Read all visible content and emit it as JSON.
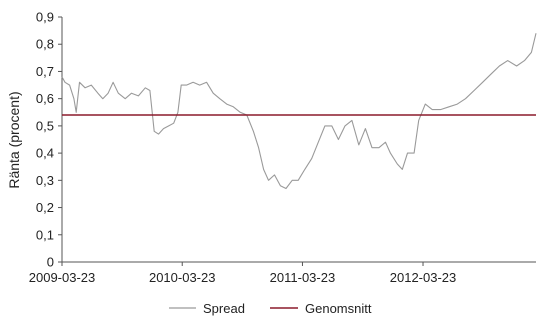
{
  "chart_data": {
    "type": "line",
    "ylabel": "Ränta (procent)",
    "xlabel": "",
    "ylim": [
      0,
      0.9
    ],
    "y_ticks": [
      "0",
      "0,1",
      "0,2",
      "0,3",
      "0,4",
      "0,5",
      "0,6",
      "0,7",
      "0,8",
      "0,9"
    ],
    "x_ticks": [
      "2009-03-23",
      "2010-03-23",
      "2011-03-23",
      "2012-03-23"
    ],
    "xlim": [
      "2009-03-23",
      "2013-03-01"
    ],
    "grid": false,
    "legend_position": "bottom",
    "series": [
      {
        "name": "Spread",
        "style": "line",
        "color": "#9a9a9a",
        "points": [
          [
            "2009-03-23",
            0.68
          ],
          [
            "2009-04-01",
            0.66
          ],
          [
            "2009-04-15",
            0.65
          ],
          [
            "2009-04-28",
            0.6
          ],
          [
            "2009-05-05",
            0.55
          ],
          [
            "2009-05-15",
            0.66
          ],
          [
            "2009-06-01",
            0.64
          ],
          [
            "2009-06-20",
            0.65
          ],
          [
            "2009-07-10",
            0.62
          ],
          [
            "2009-07-25",
            0.6
          ],
          [
            "2009-08-10",
            0.62
          ],
          [
            "2009-08-25",
            0.66
          ],
          [
            "2009-09-10",
            0.62
          ],
          [
            "2009-10-01",
            0.6
          ],
          [
            "2009-10-20",
            0.62
          ],
          [
            "2009-11-10",
            0.61
          ],
          [
            "2009-12-01",
            0.64
          ],
          [
            "2009-12-15",
            0.63
          ],
          [
            "2009-12-28",
            0.48
          ],
          [
            "2010-01-10",
            0.47
          ],
          [
            "2010-01-25",
            0.49
          ],
          [
            "2010-02-10",
            0.5
          ],
          [
            "2010-02-25",
            0.51
          ],
          [
            "2010-03-10",
            0.55
          ],
          [
            "2010-03-20",
            0.65
          ],
          [
            "2010-04-05",
            0.65
          ],
          [
            "2010-04-25",
            0.66
          ],
          [
            "2010-05-15",
            0.65
          ],
          [
            "2010-06-05",
            0.66
          ],
          [
            "2010-06-25",
            0.62
          ],
          [
            "2010-07-15",
            0.6
          ],
          [
            "2010-08-05",
            0.58
          ],
          [
            "2010-08-25",
            0.57
          ],
          [
            "2010-09-15",
            0.55
          ],
          [
            "2010-10-05",
            0.54
          ],
          [
            "2010-10-25",
            0.48
          ],
          [
            "2010-11-10",
            0.42
          ],
          [
            "2010-11-25",
            0.34
          ],
          [
            "2010-12-10",
            0.3
          ],
          [
            "2010-12-28",
            0.32
          ],
          [
            "2011-01-15",
            0.28
          ],
          [
            "2011-02-01",
            0.27
          ],
          [
            "2011-02-20",
            0.3
          ],
          [
            "2011-03-10",
            0.3
          ],
          [
            "2011-03-30",
            0.34
          ],
          [
            "2011-04-20",
            0.38
          ],
          [
            "2011-05-10",
            0.44
          ],
          [
            "2011-05-30",
            0.5
          ],
          [
            "2011-06-20",
            0.5
          ],
          [
            "2011-07-10",
            0.45
          ],
          [
            "2011-07-30",
            0.5
          ],
          [
            "2011-08-20",
            0.52
          ],
          [
            "2011-09-10",
            0.43
          ],
          [
            "2011-09-30",
            0.49
          ],
          [
            "2011-10-20",
            0.42
          ],
          [
            "2011-11-10",
            0.42
          ],
          [
            "2011-11-30",
            0.44
          ],
          [
            "2011-12-15",
            0.4
          ],
          [
            "2012-01-05",
            0.36
          ],
          [
            "2012-01-20",
            0.34
          ],
          [
            "2012-02-05",
            0.4
          ],
          [
            "2012-02-25",
            0.4
          ],
          [
            "2012-03-10",
            0.52
          ],
          [
            "2012-03-30",
            0.58
          ],
          [
            "2012-04-20",
            0.56
          ],
          [
            "2012-05-15",
            0.56
          ],
          [
            "2012-06-10",
            0.57
          ],
          [
            "2012-07-05",
            0.58
          ],
          [
            "2012-07-30",
            0.6
          ],
          [
            "2012-08-25",
            0.63
          ],
          [
            "2012-09-20",
            0.66
          ],
          [
            "2012-10-15",
            0.69
          ],
          [
            "2012-11-10",
            0.72
          ],
          [
            "2012-12-05",
            0.74
          ],
          [
            "2013-01-01",
            0.72
          ],
          [
            "2013-01-25",
            0.74
          ],
          [
            "2013-02-15",
            0.77
          ],
          [
            "2013-03-01",
            0.84
          ]
        ]
      },
      {
        "name": "Genomsnitt",
        "style": "line",
        "color": "#8b1a2b",
        "points": [
          [
            "2009-03-23",
            0.54
          ],
          [
            "2013-03-01",
            0.54
          ]
        ]
      }
    ]
  }
}
